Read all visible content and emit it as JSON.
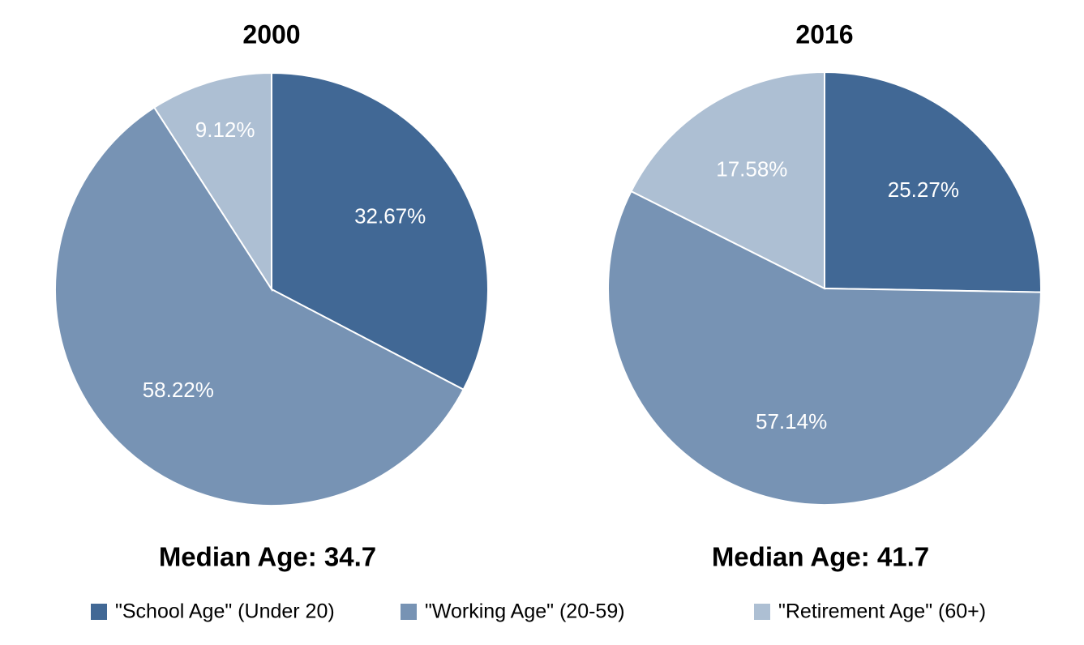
{
  "chart_data": [
    {
      "type": "pie",
      "title": "2000",
      "values": [
        32.67,
        58.22,
        9.12
      ],
      "value_labels": [
        "32.67%",
        "58.22%",
        "9.12%"
      ],
      "annotation": "Median Age: 34.7"
    },
    {
      "type": "pie",
      "title": "2016",
      "values": [
        25.27,
        57.14,
        17.58
      ],
      "value_labels": [
        "25.27%",
        "57.14%",
        "17.58%"
      ],
      "annotation": "Median Age: 41.7"
    }
  ],
  "legend": {
    "labels": [
      "\"School Age\" (Under 20)",
      "\"Working Age\" (20-59)",
      "\"Retirement Age\" (60+)"
    ],
    "colors": [
      "#416895",
      "#7793b4",
      "#adbfd3"
    ]
  }
}
